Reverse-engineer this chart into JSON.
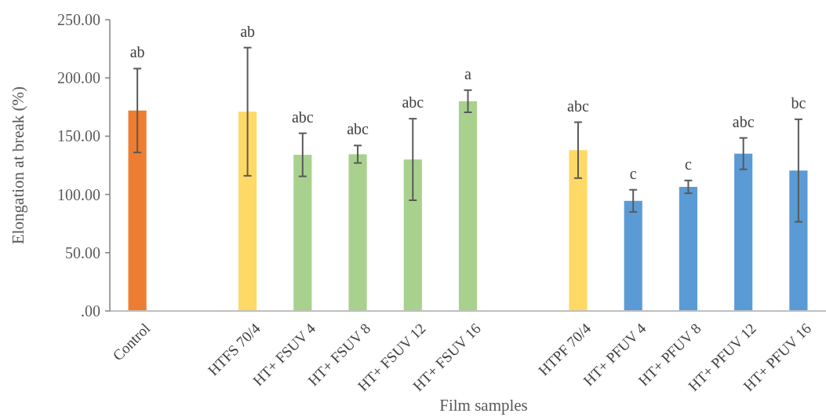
{
  "chart_data": {
    "type": "bar",
    "xlabel": "Film samples",
    "ylabel": "Elongation at break (%)",
    "categories": [
      "Control",
      null,
      "HTFS 70/4",
      "HT+ FSUV 4",
      "HT+ FSUV 8",
      "HT+ FSUV 12",
      "HT+ FSUV 16",
      null,
      "HTPF 70/4",
      "HT+ PFUV 4",
      "HT+ PFUV 8",
      "HT+ PFUV 12",
      "HT+ PFUV 16"
    ],
    "values": [
      172,
      null,
      171,
      134,
      134.5,
      130,
      180,
      null,
      138,
      94.5,
      106.5,
      135,
      120.5
    ],
    "errors": [
      36,
      null,
      55,
      18.5,
      7.5,
      35,
      9.5,
      null,
      24,
      9.5,
      5.5,
      13.5,
      44
    ],
    "colors": [
      "#ed7d31",
      null,
      "#ffd966",
      "#a9d18e",
      "#a9d18e",
      "#a9d18e",
      "#a9d18e",
      null,
      "#ffd966",
      "#5b9bd5",
      "#5b9bd5",
      "#5b9bd5",
      "#5b9bd5"
    ],
    "ylim": [
      0,
      250
    ],
    "yticks": [
      {
        "value": 0,
        "label": ".00"
      },
      {
        "value": 50,
        "label": "50.00"
      },
      {
        "value": 100,
        "label": "100.00"
      },
      {
        "value": 150,
        "label": "150.00"
      },
      {
        "value": 200,
        "label": "200.00"
      },
      {
        "value": 250,
        "label": "250.00"
      }
    ],
    "annotations": [
      "ab",
      "ab",
      "abc",
      "abc",
      "abc",
      "a",
      "abc",
      "c",
      "c",
      "abc",
      "bc"
    ]
  }
}
